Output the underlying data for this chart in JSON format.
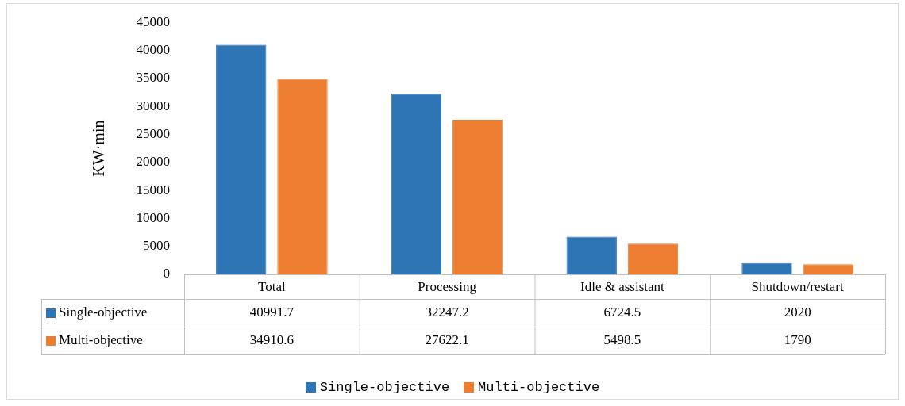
{
  "chart_data": {
    "type": "bar",
    "ylabel": "KW·min",
    "categories": [
      "Total",
      "Processing",
      "Idle & assistant",
      "Shutdown/restart"
    ],
    "series": [
      {
        "name": "Single-objective",
        "color": "#2e75b6",
        "values": [
          40991.7,
          32247.2,
          6724.5,
          2020
        ]
      },
      {
        "name": "Multi-objective",
        "color": "#ed7d31",
        "values": [
          34910.6,
          27622.1,
          5498.5,
          1790
        ]
      }
    ],
    "ylim": [
      0,
      45000
    ],
    "yticks": [
      0,
      5000,
      10000,
      15000,
      20000,
      25000,
      30000,
      35000,
      40000,
      45000
    ],
    "grid": false,
    "legend": "bottom",
    "data_labels": true
  }
}
